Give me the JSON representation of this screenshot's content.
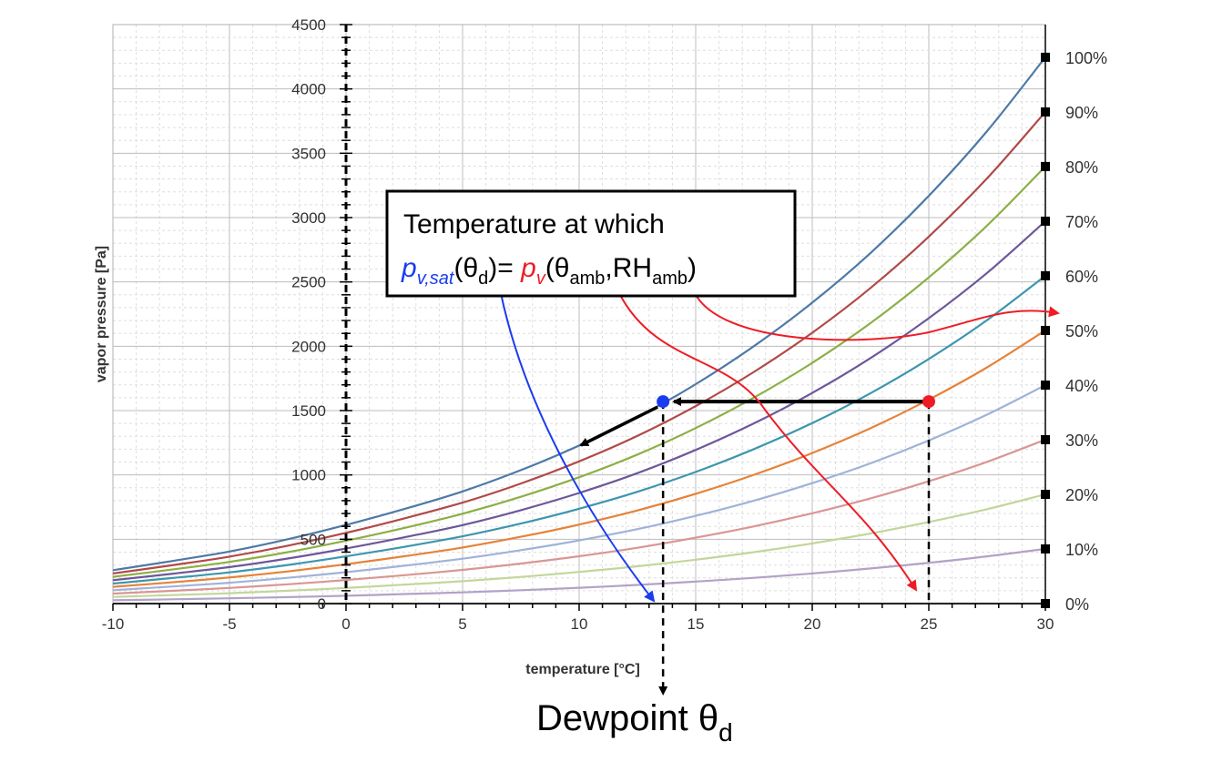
{
  "chart_data": {
    "type": "line",
    "xlabel": "temperature [°C]",
    "ylabel": "vapor pressure [Pa]",
    "xlim": [
      -10,
      30
    ],
    "ylim": [
      0,
      4500
    ],
    "x_ticks": [
      -10,
      -5,
      0,
      5,
      10,
      15,
      20,
      25,
      30
    ],
    "y_ticks": [
      0,
      500,
      1000,
      1500,
      2000,
      2500,
      3000,
      3500,
      4000,
      4500
    ],
    "grid": true,
    "x": [
      -10,
      -7.5,
      -5,
      -2.5,
      0,
      2.5,
      5,
      7.5,
      10,
      12.5,
      15,
      17.5,
      20,
      22.5,
      25,
      27.5,
      30
    ],
    "series": [
      {
        "name": "100%",
        "color": "#4e79a7",
        "values": [
          260,
          330,
          405,
          500,
          611,
          735,
          872,
          1037,
          1228,
          1448,
          1705,
          2001,
          2339,
          2725,
          3169,
          3672,
          4246
        ]
      },
      {
        "name": "90%",
        "color": "#b04a48",
        "values": [
          234,
          297,
          365,
          450,
          550,
          662,
          785,
          933,
          1105,
          1303,
          1535,
          1801,
          2105,
          2453,
          2852,
          3305,
          3821
        ]
      },
      {
        "name": "80%",
        "color": "#8caf46",
        "values": [
          208,
          264,
          324,
          400,
          489,
          588,
          698,
          830,
          982,
          1158,
          1364,
          1601,
          1871,
          2180,
          2535,
          2938,
          3397
        ]
      },
      {
        "name": "70%",
        "color": "#6d579a",
        "values": [
          182,
          231,
          284,
          350,
          428,
          515,
          610,
          726,
          860,
          1014,
          1194,
          1401,
          1637,
          1908,
          2218,
          2570,
          2972
        ]
      },
      {
        "name": "60%",
        "color": "#3d96ae",
        "values": [
          156,
          198,
          243,
          300,
          367,
          441,
          523,
          622,
          737,
          869,
          1023,
          1201,
          1403,
          1635,
          1901,
          2203,
          2548
        ]
      },
      {
        "name": "50%",
        "color": "#e5833a",
        "values": [
          130,
          165,
          203,
          250,
          306,
          368,
          436,
          519,
          614,
          724,
          853,
          1001,
          1170,
          1363,
          1585,
          1836,
          2123
        ]
      },
      {
        "name": "40%",
        "color": "#9fb3d9",
        "values": [
          104,
          132,
          162,
          200,
          244,
          294,
          349,
          415,
          491,
          579,
          682,
          800,
          936,
          1090,
          1268,
          1469,
          1698
        ]
      },
      {
        "name": "30%",
        "color": "#d99694",
        "values": [
          78,
          99,
          122,
          150,
          183,
          221,
          262,
          311,
          368,
          434,
          512,
          600,
          702,
          818,
          951,
          1102,
          1274
        ]
      },
      {
        "name": "20%",
        "color": "#c3d69b",
        "values": [
          52,
          66,
          81,
          100,
          122,
          147,
          174,
          207,
          246,
          290,
          341,
          400,
          468,
          545,
          634,
          734,
          849
        ]
      },
      {
        "name": "10%",
        "color": "#b2a2c7",
        "values": [
          26,
          33,
          41,
          50,
          61,
          74,
          87,
          104,
          123,
          145,
          171,
          200,
          234,
          273,
          317,
          367,
          425
        ]
      },
      {
        "name": "0%",
        "color": "#999999",
        "values": [
          0,
          0,
          0,
          0,
          0,
          0,
          0,
          0,
          0,
          0,
          0,
          0,
          0,
          0,
          0,
          0,
          0
        ]
      }
    ],
    "rh_labels": [
      "100%",
      "90%",
      "80%",
      "70%",
      "60%",
      "50%",
      "40%",
      "30%",
      "20%",
      "10%",
      "0%"
    ],
    "annotations": {
      "ambient_point": {
        "x": 25,
        "y": 1570,
        "color": "#ee1c25"
      },
      "dewpoint_point": {
        "x": 13.6,
        "y": 1570,
        "color": "#1a3cf0"
      },
      "dewpoint_x": 13.6
    }
  },
  "annotation_box": {
    "line1": "Temperature at which",
    "p1": "p",
    "p1_sub": "v,sat",
    "paren1_open": "(θ",
    "sub_d": "d",
    "equals": ")= ",
    "p2": "p",
    "p2_sub": "v",
    "paren2_open": "(θ",
    "sub_amb1": "amb",
    "comma_rh": ",RH",
    "sub_amb2": "amb",
    "paren2_close": ")"
  },
  "dewpoint_label": {
    "text": "Dewpoint θ",
    "sub": "d"
  },
  "colors": {
    "blue_accent": "#1a3cf0",
    "red_accent": "#ee1c25"
  }
}
